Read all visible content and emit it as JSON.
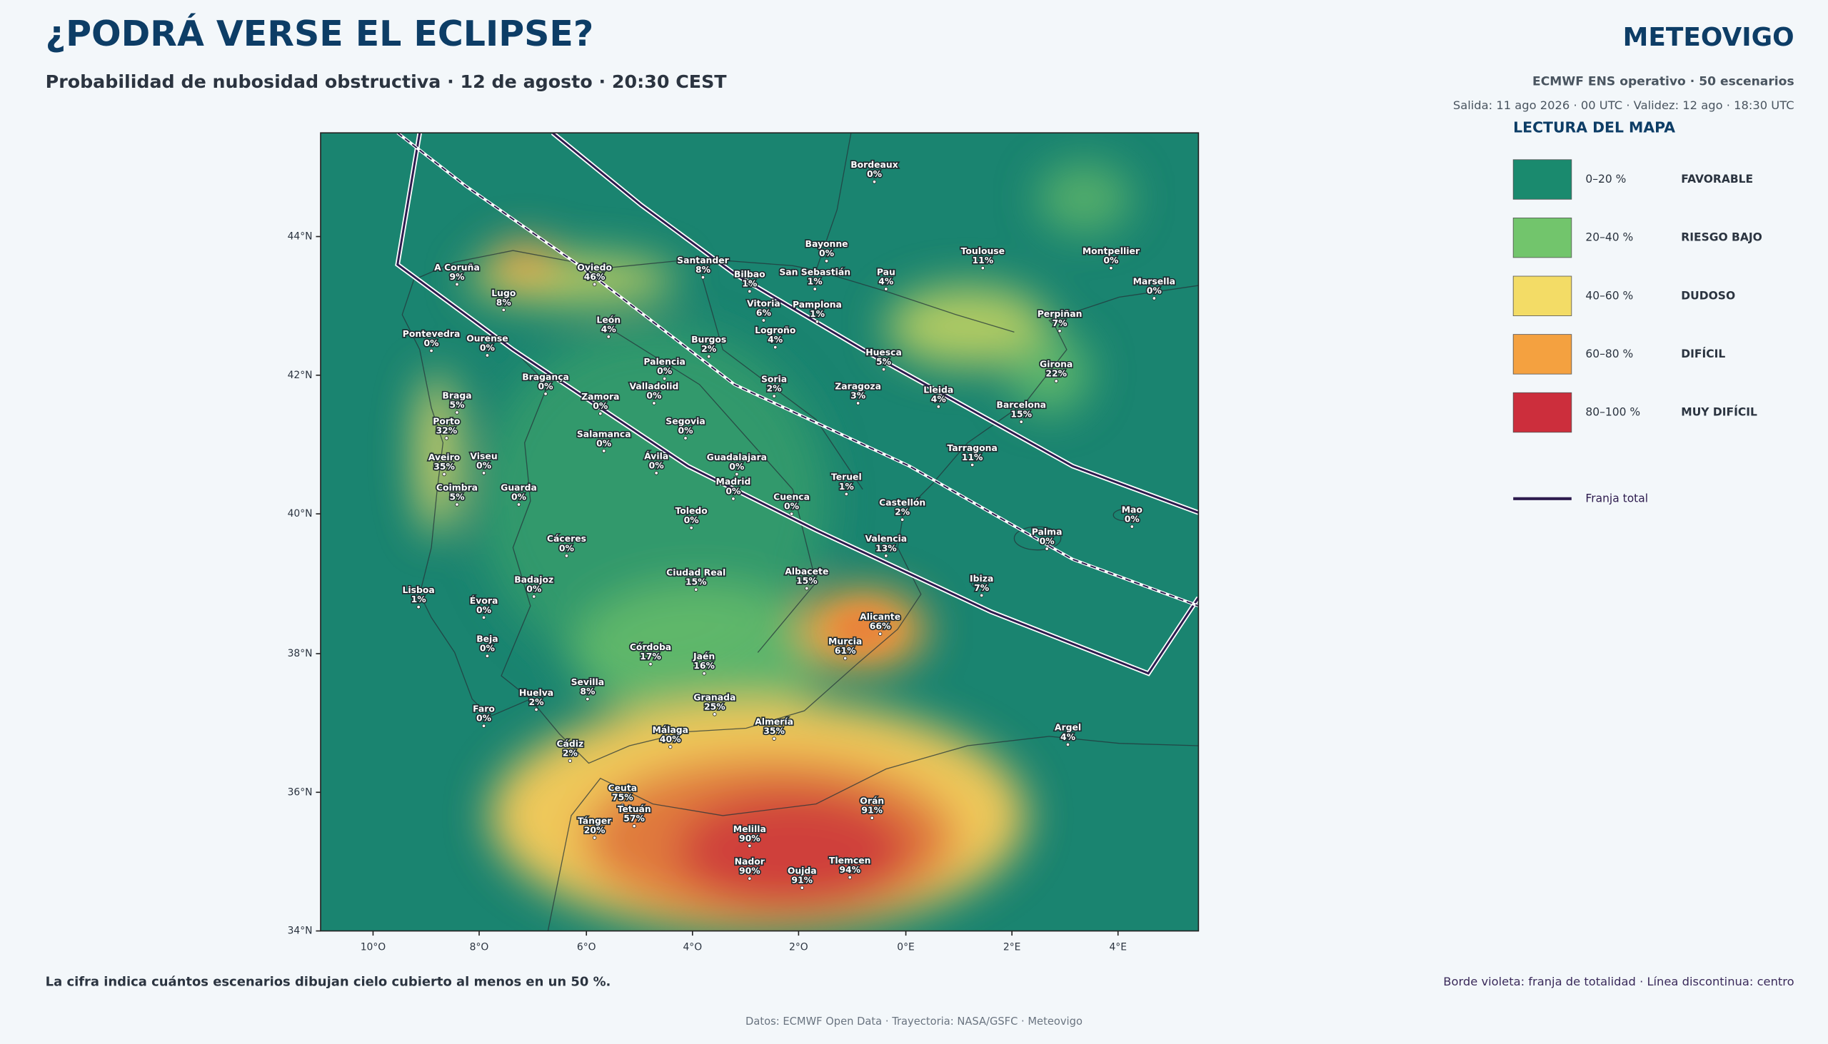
{
  "header": {
    "title": "¿PODRÁ VERSE EL ECLIPSE?",
    "subtitle": "Probabilidad de nubosidad obstructiva · 12 de agosto · 20:30 CEST",
    "brand": "METEOVIGO",
    "model": "ECMWF ENS operativo · 50 escenarios",
    "run": "Salida: 11 ago 2026 · 00 UTC · Validez: 12 ago · 18:30 UTC"
  },
  "map": {
    "x_ticks": [
      "10°O",
      "8°O",
      "6°O",
      "4°O",
      "2°O",
      "0°E",
      "2°E",
      "4°E"
    ],
    "y_ticks": [
      "44°N",
      "42°N",
      "40°N",
      "38°N",
      "36°N",
      "34°N"
    ],
    "cities": [
      {
        "name": "Bordeaux",
        "value": "0%"
      },
      {
        "name": "Bayonne",
        "value": "0%"
      },
      {
        "name": "Toulouse",
        "value": "11%"
      },
      {
        "name": "Montpellier",
        "value": "0%"
      },
      {
        "name": "Marsella",
        "value": "0%"
      },
      {
        "name": "Santander",
        "value": "8%"
      },
      {
        "name": "Oviedo",
        "value": "46%"
      },
      {
        "name": "A Coruña",
        "value": "9%"
      },
      {
        "name": "Bilbao",
        "value": "1%"
      },
      {
        "name": "San Sebastián",
        "value": "1%"
      },
      {
        "name": "Pau",
        "value": "4%"
      },
      {
        "name": "Lugo",
        "value": "8%"
      },
      {
        "name": "Vitoria",
        "value": "6%"
      },
      {
        "name": "Pamplona",
        "value": "1%"
      },
      {
        "name": "Perpiñan",
        "value": "7%"
      },
      {
        "name": "León",
        "value": "4%"
      },
      {
        "name": "Logroño",
        "value": "4%"
      },
      {
        "name": "Pontevedra",
        "value": "0%"
      },
      {
        "name": "Ourense",
        "value": "0%"
      },
      {
        "name": "Burgos",
        "value": "2%"
      },
      {
        "name": "Huesca",
        "value": "5%"
      },
      {
        "name": "Palencia",
        "value": "0%"
      },
      {
        "name": "Girona",
        "value": "22%"
      },
      {
        "name": "Bragança",
        "value": "0%"
      },
      {
        "name": "Soria",
        "value": "2%"
      },
      {
        "name": "Valladolid",
        "value": "0%"
      },
      {
        "name": "Zaragoza",
        "value": "3%"
      },
      {
        "name": "Lleida",
        "value": "4%"
      },
      {
        "name": "Braga",
        "value": "5%"
      },
      {
        "name": "Zamora",
        "value": "0%"
      },
      {
        "name": "Barcelona",
        "value": "15%"
      },
      {
        "name": "Porto",
        "value": "32%"
      },
      {
        "name": "Segovia",
        "value": "0%"
      },
      {
        "name": "Salamanca",
        "value": "0%"
      },
      {
        "name": "Tarragona",
        "value": "11%"
      },
      {
        "name": "Aveiro",
        "value": "35%"
      },
      {
        "name": "Viseu",
        "value": "0%"
      },
      {
        "name": "Guadalajara",
        "value": "0%"
      },
      {
        "name": "Ávila",
        "value": "0%"
      },
      {
        "name": "Madrid",
        "value": "0%"
      },
      {
        "name": "Teruel",
        "value": "1%"
      },
      {
        "name": "Coimbra",
        "value": "5%"
      },
      {
        "name": "Guarda",
        "value": "0%"
      },
      {
        "name": "Cuenca",
        "value": "0%"
      },
      {
        "name": "Castellón",
        "value": "2%"
      },
      {
        "name": "Mao",
        "value": "0%"
      },
      {
        "name": "Toledo",
        "value": "0%"
      },
      {
        "name": "Palma",
        "value": "0%"
      },
      {
        "name": "Valencia",
        "value": "13%"
      },
      {
        "name": "Cáceres",
        "value": "0%"
      },
      {
        "name": "Badajoz",
        "value": "0%"
      },
      {
        "name": "Ciudad Real",
        "value": "15%"
      },
      {
        "name": "Albacete",
        "value": "15%"
      },
      {
        "name": "Ibiza",
        "value": "7%"
      },
      {
        "name": "Lisboa",
        "value": "1%"
      },
      {
        "name": "Évora",
        "value": "0%"
      },
      {
        "name": "Alicante",
        "value": "66%"
      },
      {
        "name": "Beja",
        "value": "0%"
      },
      {
        "name": "Murcia",
        "value": "61%"
      },
      {
        "name": "Córdoba",
        "value": "17%"
      },
      {
        "name": "Jaén",
        "value": "16%"
      },
      {
        "name": "Sevilla",
        "value": "8%"
      },
      {
        "name": "Huelva",
        "value": "2%"
      },
      {
        "name": "Granada",
        "value": "25%"
      },
      {
        "name": "Faro",
        "value": "0%"
      },
      {
        "name": "Almería",
        "value": "35%"
      },
      {
        "name": "Argel",
        "value": "4%"
      },
      {
        "name": "Málaga",
        "value": "40%"
      },
      {
        "name": "Cádiz",
        "value": "2%"
      },
      {
        "name": "Ceuta",
        "value": "75%"
      },
      {
        "name": "Orán",
        "value": "91%"
      },
      {
        "name": "Tetuán",
        "value": "57%"
      },
      {
        "name": "Tánger",
        "value": "20%"
      },
      {
        "name": "Melilla",
        "value": "90%"
      },
      {
        "name": "Tlemcen",
        "value": "94%"
      },
      {
        "name": "Nador",
        "value": "90%"
      },
      {
        "name": "Oujda",
        "value": "91%"
      }
    ]
  },
  "legend": {
    "title": "LECTURA DEL MAPA",
    "items": [
      {
        "range": "0–20 %",
        "label": "FAVORABLE",
        "color": "#1a8a6e"
      },
      {
        "range": "20–40 %",
        "label": "RIESGO BAJO",
        "color": "#72c56c"
      },
      {
        "range": "40–60 %",
        "label": "DUDOSO",
        "color": "#f3dc66"
      },
      {
        "range": "60–80 %",
        "label": "DIFÍCIL",
        "color": "#f4a140"
      },
      {
        "range": "80–100 %",
        "label": "MUY DIFÍCIL",
        "color": "#cc2e3c"
      }
    ],
    "band_label": "Franja total"
  },
  "footer": {
    "note": "La cifra indica cuántos escenarios dibujan cielo cubierto al menos en un 50 %.",
    "band_note": "Borde violeta: franja de totalidad · Línea discontinua: centro",
    "source": "Datos: ECMWF Open Data · Trayectoria: NASA/GSFC · Meteovigo"
  }
}
